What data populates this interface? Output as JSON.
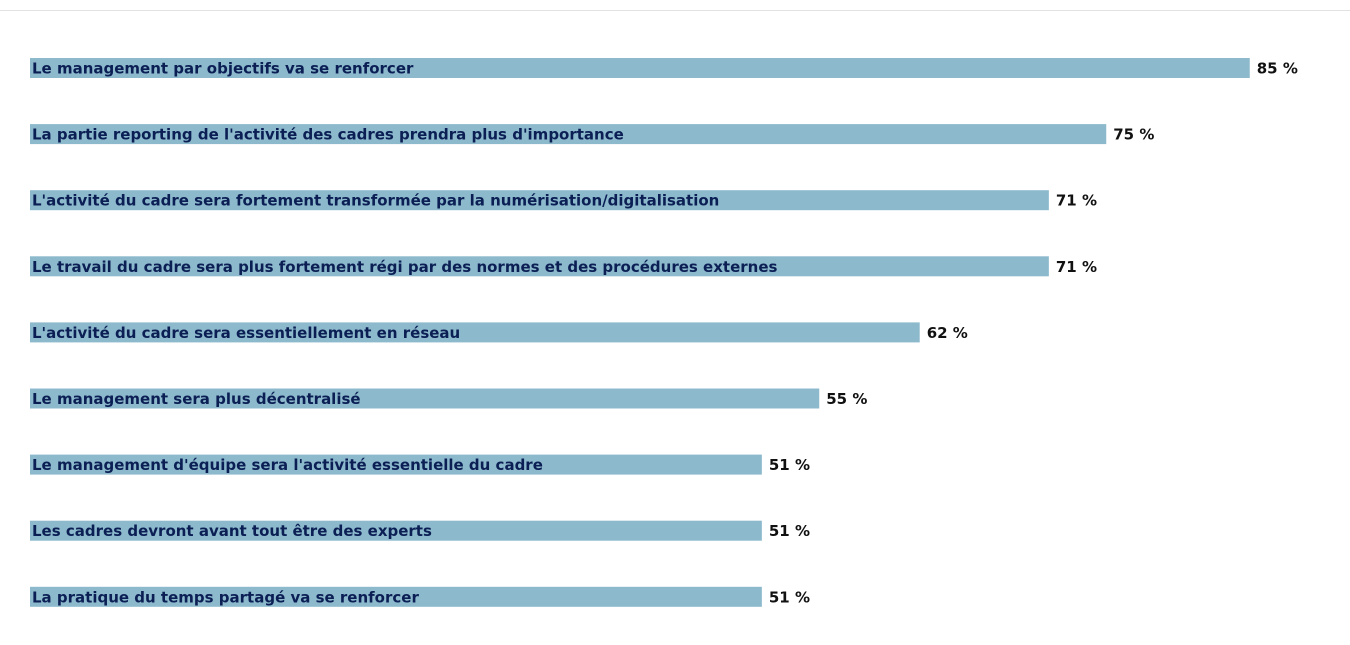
{
  "chart_data": {
    "type": "bar",
    "orientation": "horizontal",
    "categories": [
      "Le management par objectifs va se renforcer",
      "La partie reporting de l'activité des cadres prendra plus d'importance",
      "L'activité du cadre sera fortement transformée par la numérisation/digitalisation",
      "Le travail du cadre sera plus fortement régi par des normes et des procédures externes",
      "L'activité du cadre sera essentiellement en réseau",
      "Le management sera plus décentralisé",
      "Le management d'équipe sera l'activité essentielle du cadre",
      "Les cadres devront avant tout être des experts",
      "La pratique du temps partagé va se renforcer"
    ],
    "values": [
      85,
      75,
      71,
      71,
      62,
      55,
      51,
      51,
      51
    ],
    "value_labels": [
      "85 %",
      "75 %",
      "71 %",
      "71 %",
      "62 %",
      "55 %",
      "51 %",
      "51 %",
      "51 %"
    ],
    "color": "#8cb9cc"
  }
}
